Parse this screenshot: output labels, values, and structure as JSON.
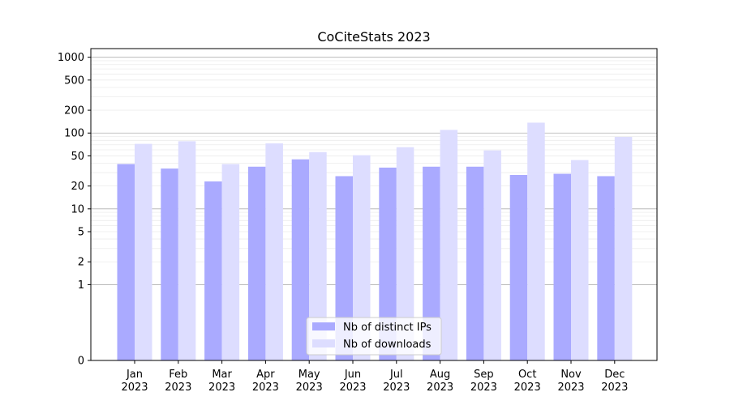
{
  "chart_data": {
    "type": "bar",
    "title": "CoCiteStats 2023",
    "xlabel": "",
    "ylabel": "",
    "yscale": "symlog",
    "ylim": [
      0,
      1300
    ],
    "grid": true,
    "legend_position": "lower-center",
    "categories": [
      [
        "Jan",
        "2023"
      ],
      [
        "Feb",
        "2023"
      ],
      [
        "Mar",
        "2023"
      ],
      [
        "Apr",
        "2023"
      ],
      [
        "May",
        "2023"
      ],
      [
        "Jun",
        "2023"
      ],
      [
        "Jul",
        "2023"
      ],
      [
        "Aug",
        "2023"
      ],
      [
        "Sep",
        "2023"
      ],
      [
        "Oct",
        "2023"
      ],
      [
        "Nov",
        "2023"
      ],
      [
        "Dec",
        "2023"
      ]
    ],
    "yticks": [
      {
        "value": 0,
        "label": "0"
      },
      {
        "value": 1,
        "label": "1"
      },
      {
        "value": 2,
        "label": "2"
      },
      {
        "value": 5,
        "label": "5"
      },
      {
        "value": 10,
        "label": "10"
      },
      {
        "value": 20,
        "label": "20"
      },
      {
        "value": 50,
        "label": "50"
      },
      {
        "value": 100,
        "label": "100"
      },
      {
        "value": 200,
        "label": "200"
      },
      {
        "value": 500,
        "label": "500"
      },
      {
        "value": 1000,
        "label": "1000"
      }
    ],
    "series": [
      {
        "name": "Nb of distinct IPs",
        "color": "#aaaaff",
        "values": [
          39,
          34,
          23,
          36,
          45,
          27,
          35,
          36,
          36,
          28,
          29,
          27
        ]
      },
      {
        "name": "Nb of downloads",
        "color": "#ddddff",
        "values": [
          72,
          78,
          39,
          73,
          56,
          51,
          65,
          110,
          59,
          137,
          44,
          89
        ]
      }
    ]
  }
}
